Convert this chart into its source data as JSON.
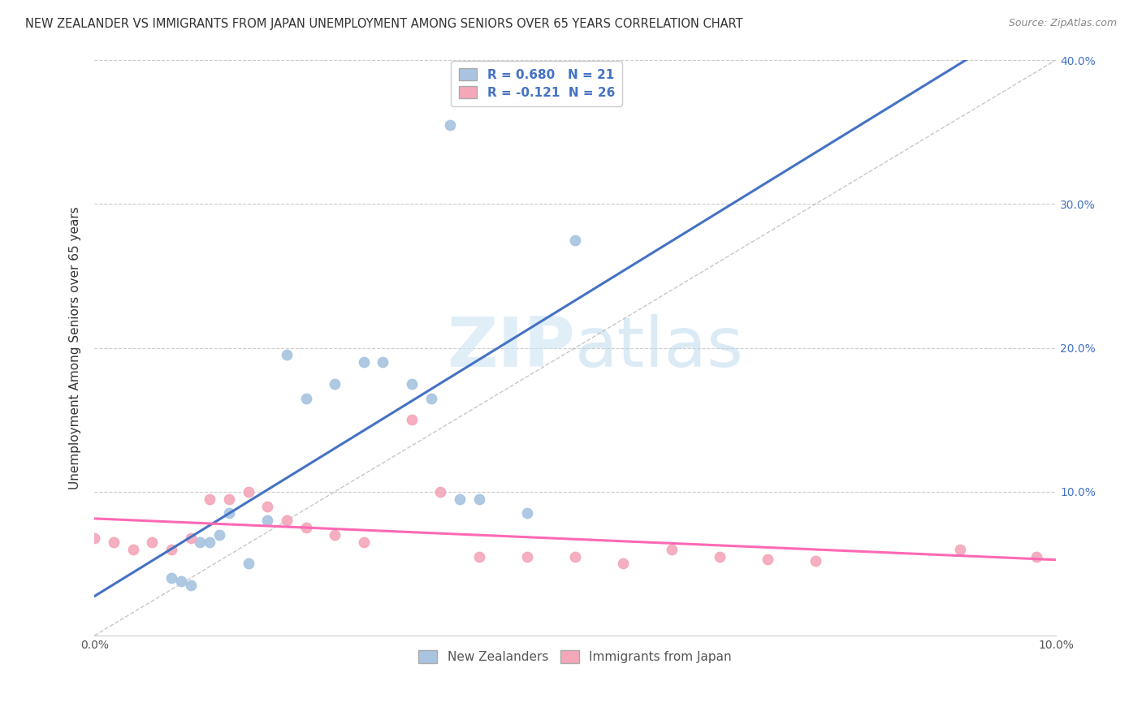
{
  "title": "NEW ZEALANDER VS IMMIGRANTS FROM JAPAN UNEMPLOYMENT AMONG SENIORS OVER 65 YEARS CORRELATION CHART",
  "source": "Source: ZipAtlas.com",
  "ylabel": "Unemployment Among Seniors over 65 years",
  "xlim": [
    0.0,
    0.1
  ],
  "ylim": [
    0.0,
    0.4
  ],
  "nz_color": "#a8c4e0",
  "jp_color": "#f4a7b9",
  "nz_line_color": "#4472c4",
  "jp_line_color": "#ff69b4",
  "watermark_zip": "ZIP",
  "watermark_atlas": "atlas",
  "legend_labels": [
    "New Zealanders",
    "Immigrants from Japan"
  ],
  "legend_text1": "R = 0.680   N = 21",
  "legend_text2": "R = -0.121  N = 26",
  "nz_x": [
    0.008,
    0.009,
    0.01,
    0.011,
    0.012,
    0.013,
    0.014,
    0.016,
    0.018,
    0.02,
    0.022,
    0.025,
    0.028,
    0.03,
    0.033,
    0.035,
    0.037,
    0.038,
    0.04,
    0.045,
    0.05
  ],
  "nz_y": [
    0.04,
    0.038,
    0.035,
    0.065,
    0.065,
    0.07,
    0.085,
    0.05,
    0.08,
    0.195,
    0.165,
    0.175,
    0.19,
    0.19,
    0.175,
    0.165,
    0.355,
    0.095,
    0.095,
    0.085,
    0.275
  ],
  "jp_x": [
    0.0,
    0.002,
    0.004,
    0.006,
    0.008,
    0.01,
    0.012,
    0.014,
    0.016,
    0.018,
    0.02,
    0.022,
    0.025,
    0.028,
    0.033,
    0.036,
    0.04,
    0.045,
    0.05,
    0.055,
    0.06,
    0.065,
    0.07,
    0.075,
    0.09,
    0.098
  ],
  "jp_y": [
    0.068,
    0.065,
    0.06,
    0.065,
    0.06,
    0.068,
    0.095,
    0.095,
    0.1,
    0.09,
    0.08,
    0.075,
    0.07,
    0.065,
    0.15,
    0.1,
    0.055,
    0.055,
    0.055,
    0.05,
    0.06,
    0.055,
    0.053,
    0.052,
    0.06,
    0.055
  ]
}
